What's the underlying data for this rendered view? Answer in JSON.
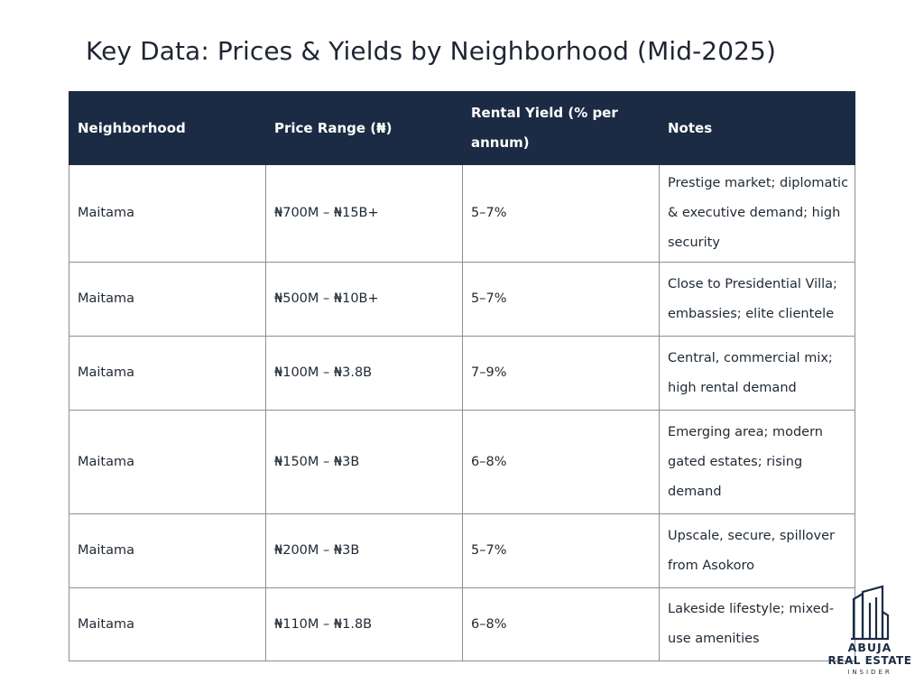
{
  "title": "Key Data: Prices & Yields by Neighborhood (Mid-2025)",
  "table": {
    "headers": [
      "Neighborhood",
      "Price Range (₦)",
      "Rental Yield (% per annum)",
      "Notes"
    ],
    "rows": [
      [
        "Maitama",
        "₦700M – ₦15B+",
        "5–7%",
        "Prestige market; diplomatic & executive demand; high security"
      ],
      [
        "Maitama",
        "₦500M – ₦10B+",
        "5–7%",
        "Close to Presidential Villa; embassies; elite clientele"
      ],
      [
        "Maitama",
        "₦100M – ₦3.8B",
        "7–9%",
        "Central, commercial mix; high rental demand"
      ],
      [
        "Maitama",
        "₦150M – ₦3B",
        "6–8%",
        "Emerging area; modern gated estates; rising demand"
      ],
      [
        "Maitama",
        "₦200M – ₦3B",
        "5–7%",
        "Upscale, secure, spillover from Asokoro"
      ],
      [
        "Maitama",
        "₦110M – ₦1.8B",
        "6–8%",
        "Lakeside lifestyle; mixed-use amenities"
      ]
    ]
  },
  "logo": {
    "line1": "ABUJA",
    "line2": "REAL ESTATE",
    "line3": "INSIDER",
    "icon": "building-icon",
    "color": "#1c2b44"
  },
  "colors": {
    "header_bg": "#1c2b44",
    "header_text": "#ffffff",
    "border": "#8a8f96"
  }
}
